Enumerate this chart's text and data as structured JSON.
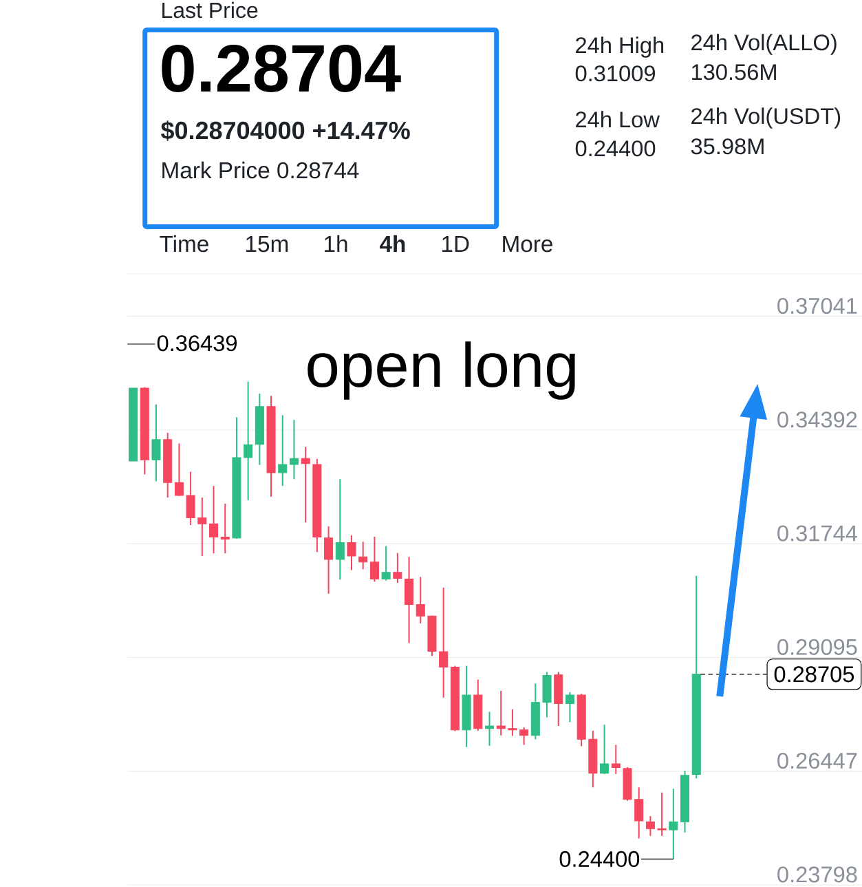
{
  "chart_data": {
    "type": "candlestick",
    "categories": [
      null,
      null,
      null,
      null,
      null,
      null,
      null,
      null,
      null,
      null,
      null,
      null,
      null,
      null,
      null,
      null,
      null,
      null,
      null,
      null,
      null,
      null,
      null,
      null,
      null,
      null,
      null,
      null,
      null,
      null,
      null,
      null,
      null,
      null,
      null,
      null,
      null,
      null,
      null,
      null,
      null,
      null,
      null,
      null,
      null,
      null,
      null,
      null,
      null,
      null
    ],
    "ohlc": [
      [
        0.3367,
        0.3537,
        0.3367,
        0.3537
      ],
      [
        0.3537,
        0.3539,
        0.3336,
        0.337
      ],
      [
        0.337,
        0.3499,
        0.332,
        0.3417
      ],
      [
        0.3417,
        0.3433,
        0.3282,
        0.3317
      ],
      [
        0.3317,
        0.3408,
        0.3286,
        0.3287
      ],
      [
        0.3287,
        0.3342,
        0.3218,
        0.3235
      ],
      [
        0.3235,
        0.3282,
        0.3146,
        0.3221
      ],
      [
        0.3221,
        0.3309,
        0.3152,
        0.319
      ],
      [
        0.319,
        0.3268,
        0.3152,
        0.3185
      ],
      [
        0.3188,
        0.3469,
        0.3186,
        0.3375
      ],
      [
        0.3375,
        0.3552,
        0.3276,
        0.3405
      ],
      [
        0.3406,
        0.3524,
        0.3358,
        0.3494
      ],
      [
        0.3494,
        0.3519,
        0.3284,
        0.334
      ],
      [
        0.334,
        0.3474,
        0.3309,
        0.3359
      ],
      [
        0.3359,
        0.3463,
        0.3325,
        0.3373
      ],
      [
        0.3373,
        0.34,
        0.3224,
        0.3361
      ],
      [
        0.3359,
        0.3372,
        0.3155,
        0.319
      ],
      [
        0.3188,
        0.3215,
        0.3058,
        0.3138
      ],
      [
        0.3138,
        0.3325,
        0.3091,
        0.3177
      ],
      [
        0.3177,
        0.3194,
        0.3113,
        0.3146
      ],
      [
        0.3144,
        0.3179,
        0.3115,
        0.3132
      ],
      [
        0.3132,
        0.3191,
        0.3086,
        0.3092
      ],
      [
        0.3092,
        0.3169,
        0.3089,
        0.3108
      ],
      [
        0.3108,
        0.3153,
        0.3083,
        0.3094
      ],
      [
        0.3092,
        0.3144,
        0.2943,
        0.3033
      ],
      [
        0.3033,
        0.3097,
        0.2989,
        0.3006
      ],
      [
        0.3006,
        0.3007,
        0.2913,
        0.2924
      ],
      [
        0.2923,
        0.3072,
        0.2816,
        0.2887
      ],
      [
        0.2887,
        0.289,
        0.2738,
        0.2741
      ],
      [
        0.2741,
        0.289,
        0.2701,
        0.2822
      ],
      [
        0.2822,
        0.2858,
        0.2739,
        0.2744
      ],
      [
        0.2744,
        0.2783,
        0.2704,
        0.275
      ],
      [
        0.275,
        0.2832,
        0.2728,
        0.2744
      ],
      [
        0.2744,
        0.2789,
        0.2727,
        0.2741
      ],
      [
        0.2741,
        0.2747,
        0.2706,
        0.2728
      ],
      [
        0.2728,
        0.2849,
        0.2719,
        0.2805
      ],
      [
        0.2805,
        0.2876,
        0.277,
        0.2868
      ],
      [
        0.2869,
        0.2876,
        0.275,
        0.2802
      ],
      [
        0.2802,
        0.2829,
        0.2759,
        0.2822
      ],
      [
        0.2822,
        0.2825,
        0.2703,
        0.2719
      ],
      [
        0.2719,
        0.2739,
        0.2607,
        0.264
      ],
      [
        0.264,
        0.2753,
        0.2638,
        0.2662
      ],
      [
        0.2662,
        0.2706,
        0.2638,
        0.2653
      ],
      [
        0.2651,
        0.2654,
        0.2576,
        0.2579
      ],
      [
        0.2579,
        0.2607,
        0.2488,
        0.2529
      ],
      [
        0.2527,
        0.254,
        0.2494,
        0.2511
      ],
      [
        0.2511,
        0.2595,
        0.2494,
        0.2508
      ],
      [
        0.2508,
        0.2604,
        0.244,
        0.2527
      ],
      [
        0.2527,
        0.2646,
        0.2502,
        0.2635
      ],
      [
        0.2637,
        0.31,
        0.2628,
        0.28705
      ]
    ],
    "colors": [
      "#2ebd85",
      "#f6465d",
      "#2ebd85",
      "#f6465d",
      "#f6465d",
      "#f6465d",
      "#f6465d",
      "#f6465d",
      "#f6465d",
      "#2ebd85",
      "#2ebd85",
      "#2ebd85",
      "#f6465d",
      "#2ebd85",
      "#2ebd85",
      "#f6465d",
      "#f6465d",
      "#f6465d",
      "#2ebd85",
      "#f6465d",
      "#f6465d",
      "#f6465d",
      "#2ebd85",
      "#f6465d",
      "#f6465d",
      "#f6465d",
      "#f6465d",
      "#f6465d",
      "#f6465d",
      "#2ebd85",
      "#f6465d",
      "#2ebd85",
      "#f6465d",
      "#f6465d",
      "#f6465d",
      "#2ebd85",
      "#2ebd85",
      "#f6465d",
      "#2ebd85",
      "#f6465d",
      "#f6465d",
      "#2ebd85",
      "#f6465d",
      "#f6465d",
      "#f6465d",
      "#f6465d",
      "#f6465d",
      "#2ebd85",
      "#2ebd85",
      "#2ebd85"
    ],
    "ylim": [
      0.2375,
      0.3803
    ],
    "yticks": [
      0.23798,
      0.26447,
      0.29095,
      0.31744,
      0.34392,
      0.37041
    ],
    "grid": "y",
    "ref_lines": [
      {
        "axis": "y",
        "value": 0.28705,
        "label": "0.28705",
        "line_style": "dashed",
        "color": "#000000"
      }
    ],
    "annotations": [
      "Last Price",
      "0.28704",
      "$0.28704000 +14.47%",
      "Mark Price 0.28744",
      "24h High",
      "0.31009",
      "24h Low",
      "0.24400",
      "24h Vol(ALLO)",
      "130.56M",
      "24h Vol(USDT)",
      "35.98M",
      "Time",
      "15m",
      "1h",
      "4h",
      "1D",
      "More",
      "open long",
      "0.36439",
      "0.24400"
    ]
  }
}
